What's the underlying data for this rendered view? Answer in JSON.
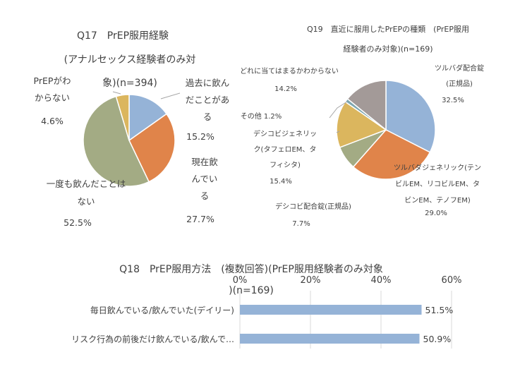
{
  "chart_data": [
    {
      "type": "pie",
      "title_lines": [
        "Q17　PrEP服用経験",
        "(アナルセックス経験者のみ対",
        "象)(n=394)"
      ],
      "slices": [
        {
          "label_lines": [
            "過去に飲ん",
            "だことがあ",
            "る"
          ],
          "value_text": "15.2%",
          "value": 15.2,
          "color": "#95b3d7"
        },
        {
          "label_lines": [
            "現在飲",
            "んでい",
            "る"
          ],
          "value_text": "27.7%",
          "value": 27.7,
          "color": "#e0844a"
        },
        {
          "label_lines": [
            "一度も飲んだことは",
            "ない"
          ],
          "value_text": "52.5%",
          "value": 52.5,
          "color": "#a3ab84"
        },
        {
          "label_lines": [
            "PrEPがわ",
            "からない"
          ],
          "value_text": "4.6%",
          "value": 4.6,
          "color": "#dbb65e"
        }
      ]
    },
    {
      "type": "pie",
      "title_lines": [
        "Q19　直近に服用したPrEPの種類　(PrEP服用",
        "経験者のみ対象)(n=169)"
      ],
      "slices": [
        {
          "label_lines": [
            "ツルバダ配合錠",
            "(正規品)"
          ],
          "value_text": "32.5%",
          "value": 32.5,
          "color": "#95b3d7"
        },
        {
          "label_lines": [
            "ツルバダジェネリック(テン",
            "ビルEM、リコビルEM、タ",
            "ビンEM、テノフEM)"
          ],
          "value_text": "29.0%",
          "value": 29.0,
          "color": "#e0844a"
        },
        {
          "label_lines": [
            "デシコビ配合錠(正規品)"
          ],
          "value_text": "7.7%",
          "value": 7.7,
          "color": "#a3ab84"
        },
        {
          "label_lines": [
            "デシコビジェネリッ",
            "ク(タフェロEM、タ",
            "フィシタ)"
          ],
          "value_text": "15.4%",
          "value": 15.4,
          "color": "#dbb65e"
        },
        {
          "label_lines": [
            "その他"
          ],
          "value_text": "1.2%",
          "value": 1.2,
          "color": "#7ea7b0"
        },
        {
          "label_lines": [
            "どれに当てはまるかわからない"
          ],
          "value_text": "14.2%",
          "value": 14.2,
          "color": "#a39a98"
        }
      ]
    },
    {
      "type": "bar",
      "orientation": "horizontal",
      "title_lines": [
        "Q18　PrEP服用方法　(複数回答)(PrEP服用経験者のみ対象",
        ")(n=169)"
      ],
      "categories": [
        "毎日飲んでいる/飲んでいた(デイリー)",
        "リスク行為の前後だけ飲んでいる/飲んで…"
      ],
      "values": [
        51.5,
        50.9
      ],
      "value_labels": [
        "51.5%",
        "50.9%"
      ],
      "x_ticks": [
        "0%",
        "20%",
        "40%",
        "60%"
      ],
      "x_tick_values": [
        0,
        20,
        40,
        60
      ],
      "xlim": [
        0,
        60
      ],
      "color": "#95b3d7"
    }
  ]
}
